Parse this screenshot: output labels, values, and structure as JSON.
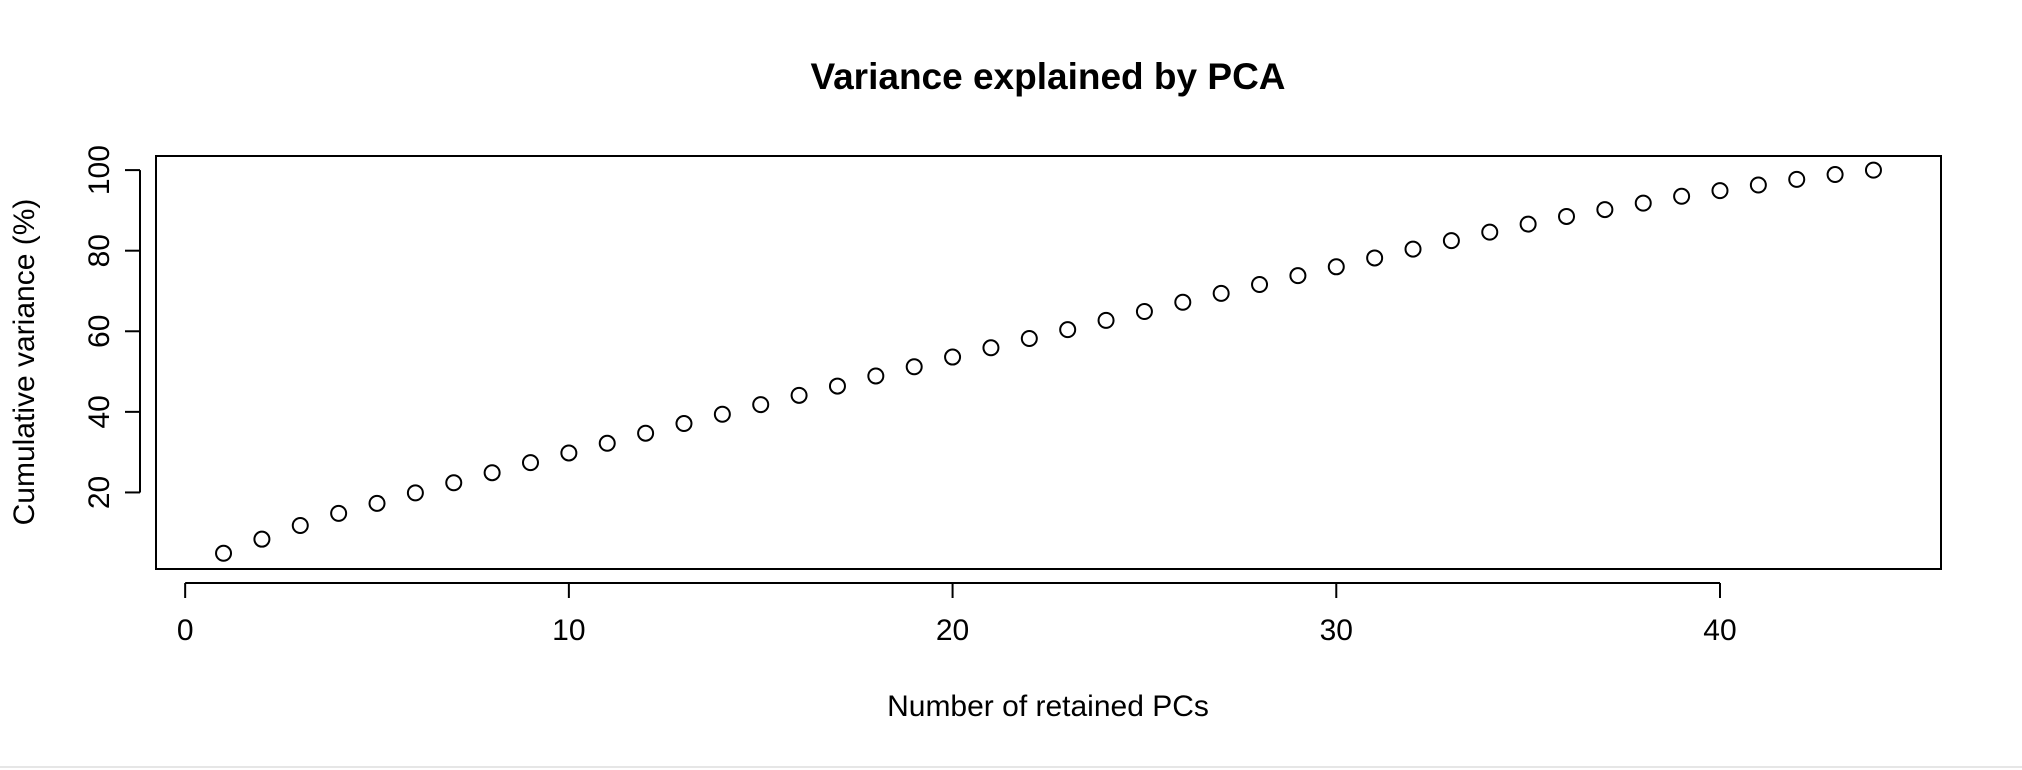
{
  "chart_data": {
    "type": "scatter",
    "title": "Variance explained by PCA",
    "xlabel": "Number of retained PCs",
    "ylabel": "Cumulative variance (%)",
    "x_ticks": [
      0,
      10,
      20,
      30,
      40
    ],
    "y_ticks": [
      20,
      40,
      60,
      80,
      100
    ],
    "xlim": [
      -0.76,
      45.76
    ],
    "ylim": [
      1.0,
      103.5
    ],
    "grid": false,
    "marker": "open-circle",
    "series": [
      {
        "x": [
          1,
          2,
          3,
          4,
          5,
          6,
          7,
          8,
          9,
          10,
          11,
          12,
          13,
          14,
          15,
          16,
          17,
          18,
          19,
          20,
          21,
          22,
          23,
          24,
          25,
          26,
          27,
          28,
          29,
          30,
          31,
          32,
          33,
          34,
          35,
          36,
          37,
          38,
          39,
          40,
          41,
          42,
          43,
          44
        ],
        "values": [
          4.9,
          8.4,
          11.8,
          14.8,
          17.3,
          19.9,
          22.4,
          24.9,
          27.4,
          29.8,
          32.2,
          34.7,
          37.1,
          39.4,
          41.8,
          44.1,
          46.4,
          48.9,
          51.2,
          53.6,
          55.9,
          58.2,
          60.4,
          62.7,
          64.9,
          67.2,
          69.4,
          71.6,
          73.8,
          76.0,
          78.2,
          80.4,
          82.5,
          84.6,
          86.6,
          88.5,
          90.2,
          91.8,
          93.5,
          94.9,
          96.3,
          97.7,
          98.9,
          100.0
        ]
      }
    ]
  }
}
